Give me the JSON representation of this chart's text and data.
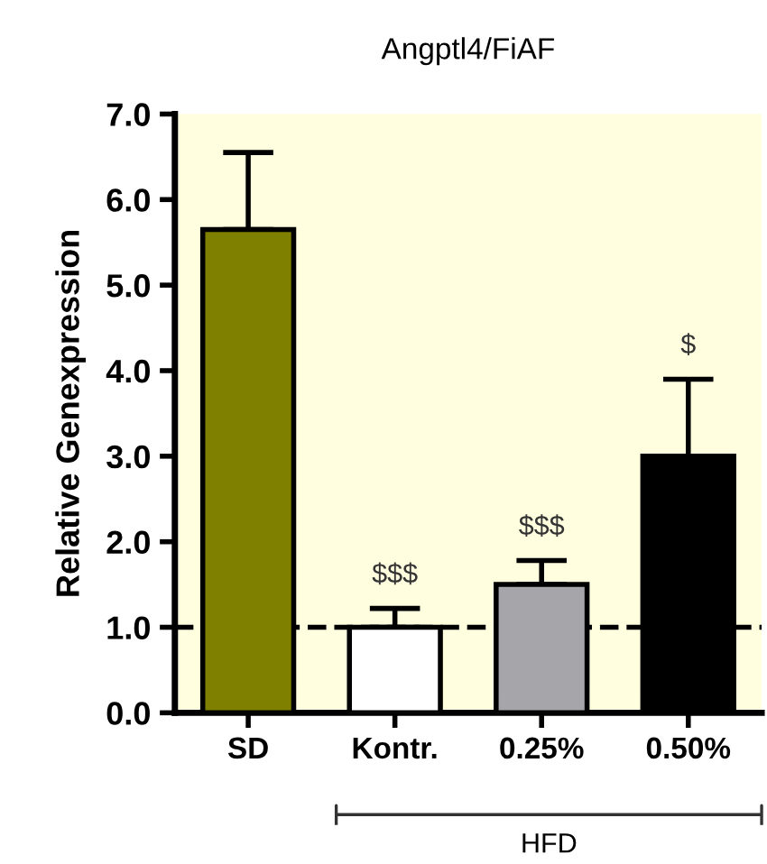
{
  "chart_data": {
    "type": "bar",
    "title": "Angptl4/FiAF",
    "ylabel": "Relative Genexpression",
    "categories": [
      "SD",
      "Kontr.",
      "0.25%",
      "0.50%"
    ],
    "values": [
      5.65,
      1.0,
      1.5,
      3.0
    ],
    "colors": [
      "#808000",
      "#ffffff",
      "#a6a6aa",
      "#000000"
    ],
    "errors": [
      [
        5.65,
        6.55
      ],
      [
        1.0,
        1.22
      ],
      [
        1.5,
        1.78
      ],
      [
        3.0,
        3.9
      ]
    ],
    "ylim": [
      0,
      7
    ],
    "yticks": [
      {
        "value": 0,
        "label": "0.0"
      },
      {
        "value": 1,
        "label": "1.0"
      },
      {
        "value": 2,
        "label": "2.0"
      },
      {
        "value": 3,
        "label": "3.0"
      },
      {
        "value": 4,
        "label": "4.0"
      },
      {
        "value": 5,
        "label": "5.0"
      },
      {
        "value": 6,
        "label": "6.0"
      },
      {
        "value": 7,
        "label": "7.0"
      }
    ],
    "ref_lines": [
      {
        "axis": "y",
        "value": 1,
        "color": "#000000",
        "line_style": "dashed"
      }
    ],
    "annotations": [
      "$$$",
      "$$$",
      "$",
      "HFD"
    ],
    "grid": false
  }
}
